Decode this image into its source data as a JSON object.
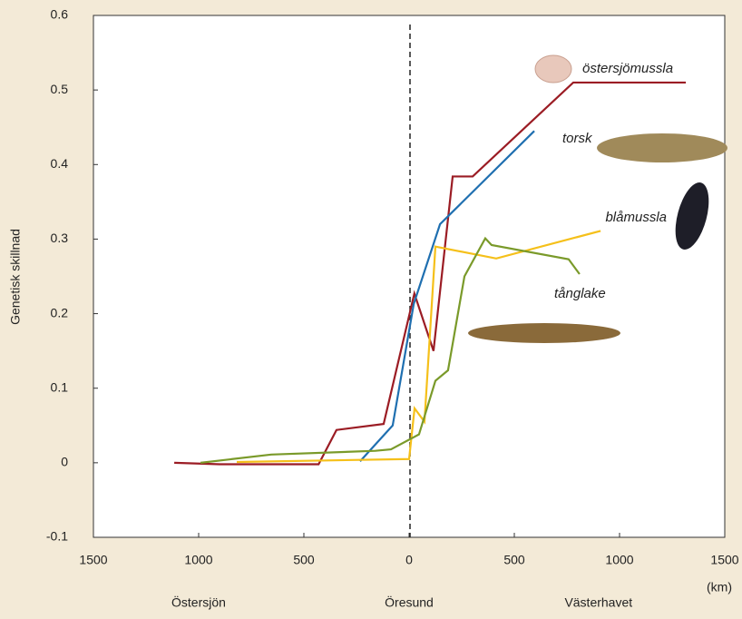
{
  "chart_data": {
    "type": "line",
    "ylabel": "Genetisk skillnad",
    "xunit": "(km)",
    "regions": [
      {
        "x": -1000,
        "label": "Östersjön"
      },
      {
        "x": 0,
        "label": "Öresund"
      },
      {
        "x": 900,
        "label": "Västerhavet"
      }
    ],
    "xlim": [
      -1500,
      1500
    ],
    "xticks": [
      {
        "value": -1500,
        "label": "1500"
      },
      {
        "value": -1000,
        "label": "1000"
      },
      {
        "value": -500,
        "label": "500"
      },
      0,
      500,
      1000,
      1500
    ],
    "ylim": [
      -0.1,
      0.6
    ],
    "yticks": [
      -0.1,
      0,
      0.1,
      0.2,
      0.3,
      0.4,
      0.5,
      0.6
    ],
    "series": [
      {
        "name": "östersjömussla",
        "color": "#9b1c24",
        "x": [
          -1116,
          -900,
          -430,
          -345,
          -121,
          25,
          116,
          207,
          302,
          780,
          1315
        ],
        "values": [
          0,
          -0.002,
          -0.002,
          0.044,
          0.052,
          0.227,
          0.15,
          0.384,
          0.384,
          0.51,
          0.51
        ]
      },
      {
        "name": "torsk",
        "color": "#1f6fb0",
        "x": [
          -233,
          -78,
          22,
          147,
          595
        ],
        "values": [
          0.002,
          0.05,
          0.213,
          0.32,
          0.445
        ]
      },
      {
        "name": "blåmussla",
        "color": "#f5c01a",
        "x": [
          -819,
          0,
          26,
          73,
          125,
          414,
          910
        ],
        "values": [
          0.001,
          0.005,
          0.073,
          0.055,
          0.29,
          0.274,
          0.311
        ]
      },
      {
        "name": "tånglake",
        "color": "#7a9a2a",
        "x": [
          -991,
          -655,
          -160,
          -86,
          47,
          125,
          185,
          263,
          362,
          392,
          758,
          810
        ],
        "values": [
          0,
          0.011,
          0.016,
          0.018,
          0.038,
          0.11,
          0.124,
          0.25,
          0.301,
          0.292,
          0.273,
          0.253
        ]
      }
    ]
  }
}
